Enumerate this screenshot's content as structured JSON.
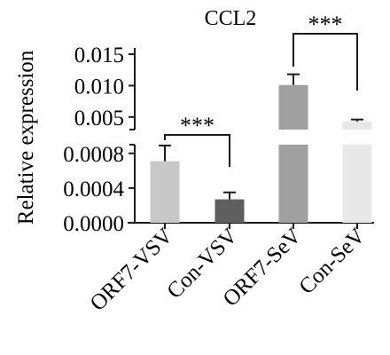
{
  "chart_data": {
    "type": "bar",
    "title": "CCL2",
    "ylabel": "Relative expression",
    "xlabel": "",
    "categories": [
      "ORF7-VSV",
      "Con-VSV",
      "ORF7-SeV",
      "Con-SeV"
    ],
    "values": [
      0.00071,
      0.00027,
      0.0101,
      0.0043
    ],
    "errors": [
      0.00018,
      8e-05,
      0.0017,
      0.0003
    ],
    "colors": [
      "#c8c8c8",
      "#5f5f5f",
      "#a0a0a0",
      "#e8e8e8"
    ],
    "broken_axis": true,
    "lower_segment": {
      "ylim": [
        0,
        0.0009
      ],
      "ticks": [
        0.0,
        0.0004,
        0.0008
      ],
      "tick_labels": [
        "0.0000",
        "0.0004",
        "0.0008"
      ]
    },
    "upper_segment": {
      "ylim": [
        0.003,
        0.016
      ],
      "ticks": [
        0.005,
        0.01,
        0.015
      ],
      "tick_labels": [
        "0.005",
        "0.010",
        "0.015"
      ]
    },
    "annotations": [
      {
        "text": "***",
        "from": "ORF7-VSV",
        "to": "Con-VSV"
      },
      {
        "text": "***",
        "from": "ORF7-SeV",
        "to": "Con-SeV"
      }
    ]
  }
}
